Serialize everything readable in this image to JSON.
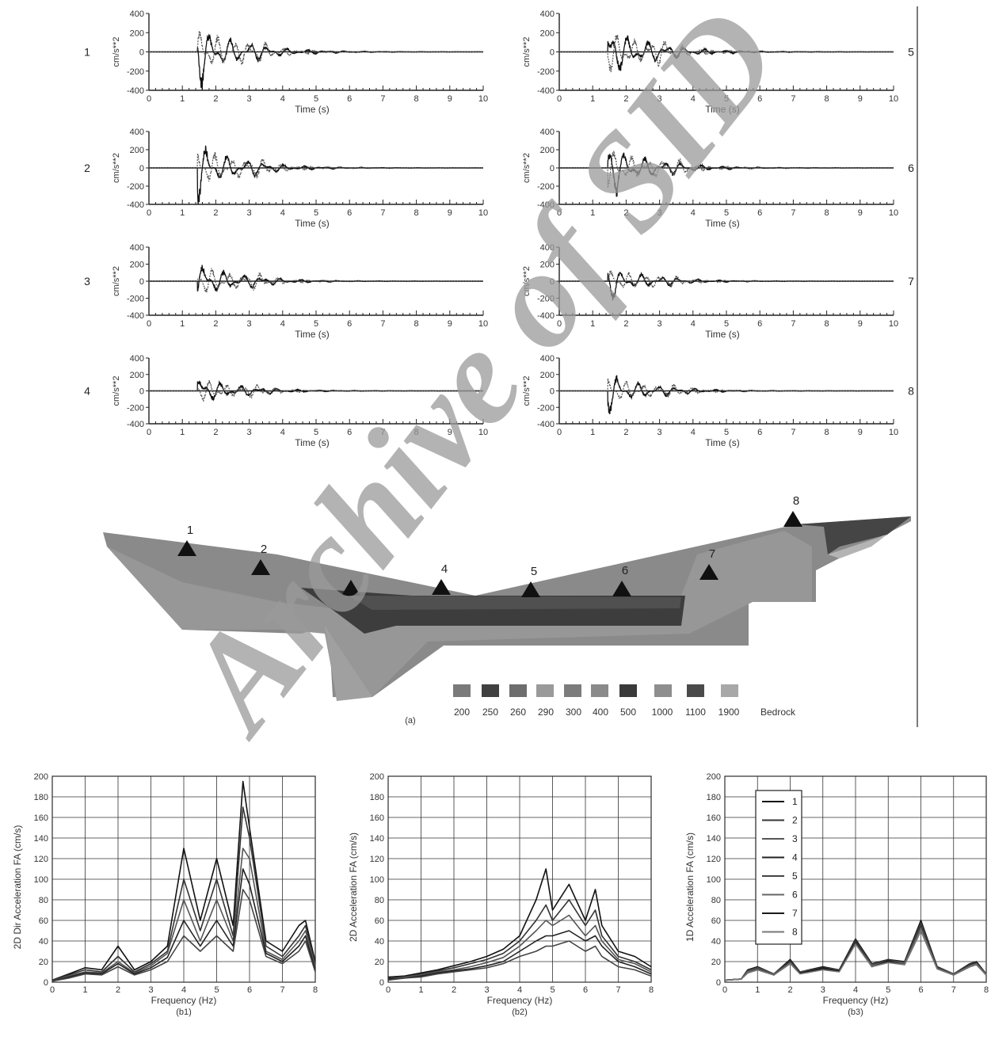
{
  "time_panels": {
    "ylabel": "cm/s**2",
    "xlabel": "Time (s)",
    "xlim": [
      0,
      10
    ],
    "ylim": [
      -400,
      400
    ],
    "xticks": [
      "0",
      "1",
      "2",
      "3",
      "4",
      "5",
      "6",
      "7",
      "8",
      "9",
      "10"
    ],
    "yticks": [
      "400",
      "200",
      "0",
      "-200",
      "-400"
    ],
    "stations": [
      "1",
      "2",
      "3",
      "4",
      "5",
      "6",
      "7",
      "8"
    ]
  },
  "section": {
    "caption": "(a)",
    "station_labels": [
      "1",
      "2",
      "3",
      "4",
      "5",
      "6",
      "7",
      "8"
    ],
    "legend_labels": [
      "200",
      "250",
      "260",
      "290",
      "300",
      "400",
      "500",
      "1000",
      "1100",
      "1900",
      "Bedrock"
    ],
    "legend_colors": [
      "#7a7a7a",
      "#404040",
      "#6e6e6e",
      "#9a9a9a",
      "#7c7c7c",
      "#8a8a8a",
      "#3a3a3a",
      "#8e8e8e",
      "#4a4a4a",
      "#a8a8a8"
    ]
  },
  "spectra": {
    "xlabel": "Frequency (Hz)",
    "xlim": [
      0,
      8
    ],
    "ylim": [
      0,
      200
    ],
    "xticks": [
      "0",
      "1",
      "2",
      "3",
      "4",
      "5",
      "6",
      "7",
      "8"
    ],
    "yticks": [
      "0",
      "20",
      "40",
      "60",
      "80",
      "100",
      "120",
      "140",
      "160",
      "180",
      "200"
    ],
    "legend_labels": [
      "1",
      "2",
      "3",
      "4",
      "5",
      "6",
      "7",
      "8"
    ]
  },
  "chart_data": [
    {
      "type": "line",
      "ylabel": "2D Dir Acceleration FA (cm/s)",
      "xlabel": "Frequency (Hz)",
      "caption": "(b1)",
      "xlim": [
        0,
        8
      ],
      "ylim": [
        0,
        200
      ],
      "grid": true,
      "x": [
        0,
        0.5,
        1,
        1.5,
        2,
        2.5,
        3,
        3.5,
        4,
        4.5,
        5,
        5.5,
        5.8,
        6,
        6.5,
        7,
        7.5,
        7.7,
        8
      ],
      "series": [
        {
          "values": [
            2,
            8,
            14,
            12,
            35,
            12,
            20,
            35,
            130,
            60,
            120,
            55,
            195,
            150,
            40,
            30,
            55,
            60,
            20
          ]
        },
        {
          "values": [
            2,
            7,
            12,
            10,
            25,
            10,
            18,
            30,
            100,
            50,
            100,
            45,
            170,
            140,
            35,
            25,
            45,
            55,
            18
          ]
        },
        {
          "values": [
            1,
            6,
            10,
            9,
            20,
            9,
            16,
            28,
            80,
            40,
            80,
            40,
            130,
            120,
            30,
            22,
            40,
            50,
            15
          ]
        },
        {
          "values": [
            1,
            5,
            9,
            8,
            18,
            8,
            14,
            24,
            60,
            35,
            60,
            35,
            110,
            95,
            28,
            20,
            35,
            45,
            12
          ]
        },
        {
          "values": [
            1,
            4,
            8,
            7,
            15,
            7,
            12,
            20,
            45,
            30,
            45,
            30,
            90,
            80,
            25,
            18,
            30,
            40,
            10
          ]
        }
      ]
    },
    {
      "type": "line",
      "ylabel": "2D Acceleration FA (cm/s)",
      "xlabel": "Frequency (Hz)",
      "caption": "(b2)",
      "xlim": [
        0,
        8
      ],
      "ylim": [
        0,
        200
      ],
      "grid": true,
      "x": [
        0,
        0.5,
        1,
        1.5,
        2,
        2.5,
        3,
        3.5,
        4,
        4.5,
        4.8,
        5,
        5.5,
        6,
        6.3,
        6.5,
        7,
        7.5,
        8
      ],
      "series": [
        {
          "values": [
            5,
            6,
            9,
            12,
            16,
            20,
            25,
            32,
            45,
            80,
            110,
            70,
            95,
            60,
            90,
            55,
            30,
            25,
            15
          ]
        },
        {
          "values": [
            4,
            5,
            8,
            11,
            14,
            18,
            22,
            28,
            40,
            60,
            75,
            60,
            80,
            55,
            70,
            45,
            25,
            20,
            12
          ]
        },
        {
          "values": [
            3,
            5,
            7,
            10,
            12,
            15,
            19,
            24,
            35,
            50,
            60,
            55,
            65,
            45,
            55,
            40,
            22,
            18,
            10
          ]
        },
        {
          "values": [
            3,
            4,
            6,
            9,
            11,
            13,
            16,
            20,
            30,
            40,
            45,
            45,
            50,
            40,
            45,
            35,
            20,
            15,
            8
          ]
        },
        {
          "values": [
            2,
            4,
            5,
            8,
            10,
            12,
            14,
            18,
            25,
            30,
            35,
            35,
            40,
            30,
            35,
            25,
            15,
            12,
            6
          ]
        }
      ]
    },
    {
      "type": "line",
      "ylabel": "1D Acceleration FA (cm/s)",
      "xlabel": "Frequency (Hz)",
      "caption": "(b3)",
      "xlim": [
        0,
        8
      ],
      "ylim": [
        0,
        200
      ],
      "grid": true,
      "x": [
        0,
        0.5,
        0.7,
        1,
        1.5,
        2,
        2.3,
        3,
        3.5,
        4,
        4.5,
        5,
        5.5,
        6,
        6.5,
        7,
        7.5,
        7.7,
        8
      ],
      "series": [
        {
          "name": "1",
          "values": [
            2,
            3,
            12,
            15,
            8,
            22,
            10,
            15,
            12,
            42,
            18,
            22,
            20,
            60,
            15,
            8,
            18,
            20,
            8
          ]
        },
        {
          "name": "2",
          "values": [
            2,
            3,
            11,
            14,
            8,
            21,
            10,
            14,
            12,
            41,
            17,
            22,
            19,
            58,
            15,
            8,
            18,
            20,
            8
          ]
        },
        {
          "name": "3",
          "values": [
            2,
            3,
            11,
            14,
            8,
            20,
            10,
            14,
            12,
            40,
            17,
            21,
            19,
            56,
            14,
            8,
            17,
            19,
            8
          ]
        },
        {
          "name": "4",
          "values": [
            2,
            3,
            10,
            13,
            7,
            20,
            9,
            14,
            11,
            40,
            16,
            21,
            18,
            55,
            14,
            7,
            17,
            19,
            7
          ]
        },
        {
          "name": "5",
          "values": [
            2,
            3,
            10,
            13,
            7,
            19,
            9,
            13,
            11,
            39,
            16,
            20,
            18,
            54,
            14,
            7,
            16,
            18,
            7
          ]
        },
        {
          "name": "6",
          "values": [
            2,
            3,
            10,
            12,
            7,
            19,
            9,
            13,
            11,
            38,
            16,
            20,
            18,
            52,
            13,
            7,
            16,
            18,
            7
          ]
        },
        {
          "name": "7",
          "values": [
            2,
            3,
            9,
            12,
            7,
            18,
            9,
            13,
            11,
            38,
            15,
            20,
            17,
            50,
            13,
            7,
            15,
            17,
            7
          ]
        },
        {
          "name": "8",
          "values": [
            2,
            3,
            9,
            12,
            7,
            18,
            8,
            12,
            10,
            37,
            15,
            19,
            17,
            50,
            13,
            7,
            15,
            17,
            7
          ]
        }
      ]
    }
  ]
}
